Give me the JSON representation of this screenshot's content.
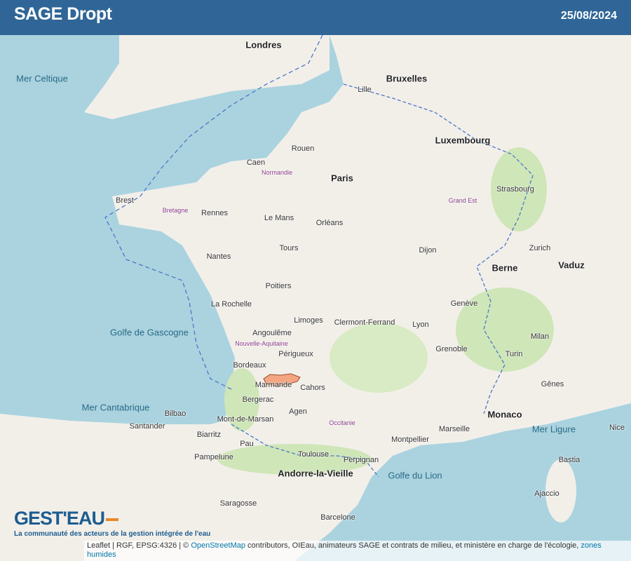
{
  "header": {
    "title": "SAGE Dropt",
    "date": "25/08/2024"
  },
  "map": {
    "highlighted_area": "SAGE Dropt",
    "colors": {
      "sea": "#aad3df",
      "land": "#f2efe9",
      "forest": "#cfe6b8",
      "highlight": "#f4a582",
      "header": "#2f6697",
      "border": "#4a78c8"
    },
    "labels": {
      "big": [
        "Londres",
        "Paris",
        "Bruxelles",
        "Luxembourg",
        "Berne",
        "Monaco",
        "Andorre-la-Vieille",
        "Vaduz"
      ],
      "cities": [
        "Bordeaux",
        "Toulouse",
        "Marmande",
        "Nantes",
        "Rennes",
        "Brest",
        "Limoges",
        "Lyon",
        "Marseille",
        "Montpellier",
        "Nice",
        "Dijon",
        "Strasbourg",
        "Lille",
        "Rouen",
        "Caen",
        "Le Mans",
        "Orléans",
        "Tours",
        "Poitiers",
        "La Rochelle",
        "Angoulême",
        "Périgueux",
        "Clermont-Ferrand",
        "Grenoble",
        "Perpignan",
        "Barcelone",
        "Santander",
        "Bilbao",
        "Pampelune",
        "Saragosse",
        "Genève",
        "Zurich",
        "Turin",
        "Milan",
        "Gênes",
        "Bastia",
        "Ajaccio",
        "Cahors",
        "Agen",
        "Bergerac",
        "Mont-de-Marsan",
        "Pau",
        "Biarritz"
      ],
      "seas": [
        "Golfe de Gascogne",
        "Mer Cantabrique",
        "Golfe du Lion",
        "Mer Celtique",
        "Mer Ligure"
      ],
      "regions": [
        "Nouvelle-Aquitaine",
        "Occitanie",
        "Bretagne",
        "Normandie",
        "Grand Est"
      ]
    }
  },
  "logo": {
    "name": "GEST'EAU",
    "tagline": "La communauté des acteurs de la gestion intégrée de l'eau"
  },
  "attribution": {
    "prefix": "Leaflet | RGF, EPSG:4326 | © ",
    "osm_link": "OpenStreetMap",
    "text": " contributors, OIEau, animateurs SAGE et contrats de milieu, et ministère en charge de l'écologie, ",
    "zones_link": "zones humides"
  }
}
